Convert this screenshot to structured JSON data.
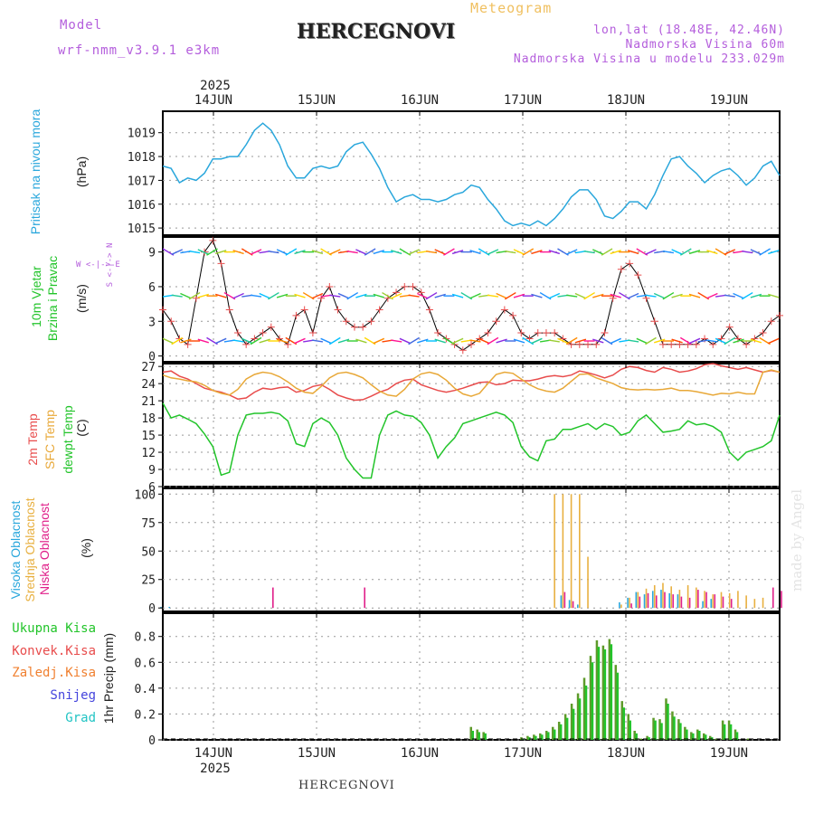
{
  "header": {
    "model_label": "Model",
    "model_name": "wrf-nmm_v3.9.1 e3km",
    "meteogram": "Meteogram",
    "station": "HERCEGNOVI",
    "coords": "lon,lat (18.48E, 42.46N)",
    "altitude": "Nadmorska Visina 60m",
    "model_altitude": "Nadmorska Visina u modelu 233.029m",
    "year_top": "2025",
    "year_bottom": "2025",
    "footer_station": "HERCEGNOVI",
    "credit": "made by Angel"
  },
  "panel_labels": {
    "pressure": [
      "Pritisak na nivou mora",
      "(hPa)"
    ],
    "wind": [
      "10m Vjetar",
      "Brzina i Pravac",
      "(m/s)"
    ],
    "wind_compass": "W <-|-> E",
    "wind_compass2": "S <-|-> N",
    "temp": [
      "2m Temp",
      "SFC Temp",
      "dewpt Temp",
      "(C)"
    ],
    "cloud": [
      "Visoka Oblacnost",
      "Srednja Oblacnost",
      "Niska Oblacnost",
      "(%)"
    ],
    "precip_legend": [
      "Ukupna Kisa",
      "Konvek.Kisa",
      "Zaledj.Kisa",
      "Snijeg",
      "Grad"
    ],
    "precip_axis": "1hr Precip (mm)"
  },
  "colors": {
    "pressure": "#2aa7dc",
    "t2m": "#e84c4c",
    "tsfc": "#e8a838",
    "dewpt": "#22c42a",
    "high_cloud": "#2aa7dc",
    "mid_cloud": "#e8b040",
    "low_cloud": "#e0208a",
    "rain": "#22c42a",
    "conv": "#e84c4c",
    "frz": "#f08030",
    "snow": "#4444dd",
    "hail": "#22c4c4",
    "pressure_label": "#2aa7dc",
    "wind_label": "#22c42a"
  },
  "chart_data": [
    {
      "type": "line",
      "name": "pressure",
      "x_ticks": [
        "14JUN",
        "15JUN",
        "16JUN",
        "17JUN",
        "18JUN",
        "19JUN"
      ],
      "ylabel": "(hPa)",
      "ylim": [
        1014.7,
        1019.9
      ],
      "yticks": [
        1015,
        1016,
        1017,
        1018,
        1019
      ],
      "series": [
        {
          "values": [
            1017.6,
            1017.5,
            1016.9,
            1017.1,
            1017.0,
            1017.3,
            1017.9,
            1017.9,
            1018.0,
            1018.0,
            1018.5,
            1019.1,
            1019.4,
            1019.1,
            1018.5,
            1017.6,
            1017.1,
            1017.1,
            1017.5,
            1017.6,
            1017.5,
            1017.6,
            1018.2,
            1018.5,
            1018.6,
            1018.1,
            1017.5,
            1016.7,
            1016.1,
            1016.3,
            1016.4,
            1016.2,
            1016.2,
            1016.1,
            1016.2,
            1016.4,
            1016.5,
            1016.8,
            1016.7,
            1016.2,
            1015.8,
            1015.3,
            1015.1,
            1015.2,
            1015.1,
            1015.3,
            1015.1,
            1015.4,
            1015.8,
            1016.3,
            1016.6,
            1016.6,
            1016.2,
            1015.5,
            1015.4,
            1015.7,
            1016.1,
            1016.1,
            1015.8,
            1016.4,
            1017.2,
            1017.9,
            1018.0,
            1017.6,
            1017.3,
            1016.9,
            1017.2,
            1017.4,
            1017.5,
            1017.2,
            1016.8,
            1017.1,
            1017.6,
            1017.8,
            1017.2
          ]
        }
      ]
    },
    {
      "type": "line",
      "name": "wind",
      "ylabel": "(m/s)",
      "ylim": [
        -0.5,
        10.3
      ],
      "yticks": [
        0,
        3,
        6,
        9
      ],
      "series": [
        {
          "name": "speed",
          "values": [
            4,
            3,
            1.5,
            1,
            5,
            9,
            10,
            8,
            4,
            2,
            1,
            1.5,
            2,
            2.5,
            1.5,
            1,
            3.5,
            4,
            2,
            5,
            6,
            4,
            3,
            2.5,
            2.5,
            3,
            4,
            5,
            5.5,
            6,
            6,
            5.5,
            4,
            2,
            1.5,
            1,
            0.5,
            1,
            1.5,
            2,
            3,
            4,
            3.5,
            2,
            1.5,
            2,
            2,
            2,
            1.5,
            1,
            1,
            1,
            1,
            2,
            5,
            7.5,
            8,
            7,
            5,
            3,
            1,
            1,
            1,
            1,
            1,
            1.5,
            1,
            1.5,
            2.5,
            1.5,
            1,
            1.5,
            2,
            3,
            3.5
          ]
        }
      ]
    },
    {
      "type": "line",
      "name": "temperature",
      "ylabel": "(C)",
      "ylim": [
        6,
        27.5
      ],
      "yticks": [
        6,
        9,
        12,
        15,
        18,
        21,
        24,
        27
      ],
      "series": [
        {
          "name": "2m Temp",
          "values": [
            26,
            26.2,
            25.3,
            24.8,
            24,
            23.2,
            22.8,
            22.5,
            22,
            21.3,
            21.5,
            22.5,
            23.2,
            23,
            23.3,
            23.4,
            22.5,
            22.8,
            23.5,
            23.8,
            23,
            22,
            21.5,
            21.1,
            21.2,
            21.8,
            22.5,
            23,
            24,
            24.6,
            24.8,
            23.8,
            23.3,
            22.8,
            22.5,
            22.8,
            23.2,
            23.7,
            24.2,
            24.3,
            23.8,
            24,
            24.6,
            24.5,
            24.5,
            24.8,
            25.2,
            25.4,
            25.2,
            25.5,
            26.2,
            25.9,
            25.5,
            25,
            25.5,
            26.5,
            27,
            26.8,
            26.3,
            26,
            26.8,
            26.5,
            26,
            26.2,
            26.6,
            27.3,
            27.5,
            27.1,
            26.8,
            26.5,
            26.8,
            26.4,
            26,
            26.3,
            26
          ]
        },
        {
          "name": "SFC Temp",
          "values": [
            25.5,
            25,
            24.8,
            24.5,
            24.3,
            23.7,
            22.8,
            22.3,
            22,
            23,
            24.8,
            25.6,
            26,
            25.8,
            25.2,
            24.3,
            23.2,
            22.5,
            22.3,
            23.5,
            25,
            25.8,
            26,
            25.6,
            25,
            23.8,
            22.7,
            22,
            21.8,
            23,
            24.8,
            25.7,
            26,
            25.6,
            24.6,
            23.2,
            22.2,
            21.8,
            22.3,
            24,
            25.6,
            26,
            25.8,
            24.8,
            23.8,
            23.1,
            22.7,
            22.5,
            23.2,
            24.4,
            25.6,
            25.7,
            25,
            24.5,
            24,
            23.3,
            23,
            22.9,
            23,
            22.9,
            23,
            23.2,
            22.8,
            22.8,
            22.6,
            22.3,
            22,
            22.3,
            22.2,
            22.5,
            22.2,
            22.2,
            26,
            26.4,
            26
          ]
        },
        {
          "name": "dewpt Temp",
          "values": [
            20.6,
            18,
            18.5,
            17.8,
            17,
            15.2,
            13,
            8,
            8.5,
            15,
            18.5,
            18.8,
            18.8,
            19,
            18.7,
            17.5,
            13.5,
            13,
            17,
            18,
            17.2,
            15,
            11,
            9,
            7.5,
            7.5,
            15,
            18.5,
            19.2,
            18.5,
            18.3,
            17.2,
            15,
            11,
            13,
            14.5,
            17,
            17.5,
            18,
            18.5,
            19,
            18.5,
            17.2,
            13,
            11.2,
            10.5,
            14,
            14.3,
            16,
            16,
            16.5,
            17,
            16,
            17,
            16.5,
            15,
            15.5,
            17.5,
            18.5,
            17,
            15.5,
            15.7,
            16,
            17.5,
            16.8,
            17,
            16.5,
            15.5,
            12,
            10.6,
            12,
            12.5,
            13,
            14,
            18.5
          ]
        }
      ]
    },
    {
      "type": "bar",
      "name": "cloud",
      "ylabel": "(%)",
      "ylim": [
        -3,
        105
      ],
      "yticks": [
        0,
        25,
        50,
        75,
        100
      ],
      "series": [
        {
          "name": "Visoka Oblacnost",
          "values": [
            1,
            1,
            0,
            0,
            0,
            0,
            0,
            0,
            0,
            0,
            0,
            0,
            0,
            0,
            0,
            0,
            0,
            0,
            0,
            0,
            0,
            0,
            0,
            0,
            0,
            0,
            0,
            0,
            0,
            0,
            0,
            0,
            0,
            0,
            0,
            0,
            0,
            0,
            0,
            0,
            0,
            0,
            0,
            0,
            0,
            0,
            0,
            0,
            11,
            7,
            3,
            0,
            0,
            0,
            0,
            5,
            9,
            14,
            12,
            15,
            16,
            13,
            12,
            0,
            0,
            6,
            8,
            0,
            0,
            0,
            0,
            0,
            0,
            0,
            0
          ]
        },
        {
          "name": "Srednja Oblacnost",
          "values": [
            0,
            0,
            0,
            0,
            0,
            0,
            0,
            0,
            0,
            0,
            0,
            0,
            0,
            0,
            0,
            0,
            0,
            0,
            0,
            0,
            0,
            0,
            0,
            0,
            0,
            0,
            0,
            0,
            0,
            0,
            0,
            0,
            0,
            0,
            0,
            0,
            0,
            0,
            0,
            0,
            0,
            0,
            0,
            0,
            0,
            0,
            0,
            100,
            100,
            100,
            100,
            45,
            0,
            0,
            0,
            3,
            9,
            14,
            17,
            20,
            22,
            19,
            16,
            20,
            18,
            15,
            12,
            14,
            13,
            15,
            11,
            8,
            9,
            0,
            0
          ]
        },
        {
          "name": "Niska Oblacnost",
          "values": [
            0,
            0,
            0,
            0,
            0,
            0,
            0,
            0,
            0,
            0,
            0,
            0,
            0,
            18,
            0,
            0,
            0,
            0,
            0,
            0,
            0,
            0,
            0,
            0,
            18,
            0,
            0,
            0,
            0,
            0,
            0,
            0,
            0,
            0,
            0,
            0,
            0,
            0,
            0,
            0,
            0,
            0,
            0,
            0,
            0,
            0,
            0,
            0,
            14,
            6,
            0,
            0,
            0,
            0,
            0,
            0,
            4,
            10,
            13,
            11,
            14,
            12,
            10,
            9,
            16,
            14,
            12,
            10,
            8,
            0,
            0,
            0,
            0,
            18,
            15
          ]
        }
      ]
    },
    {
      "type": "bar",
      "name": "precip",
      "ylabel": "1hr Precip (mm)",
      "ylim": [
        0,
        0.98
      ],
      "yticks": [
        0,
        0.2,
        0.4,
        0.6,
        0.8
      ],
      "series": [
        {
          "name": "Ukupna Kisa",
          "values": [
            0,
            0,
            0,
            0,
            0,
            0,
            0,
            0,
            0,
            0,
            0,
            0,
            0,
            0,
            0,
            0,
            0,
            0,
            0,
            0,
            0,
            0,
            0,
            0,
            0,
            0,
            0,
            0,
            0,
            0,
            0,
            0,
            0,
            0,
            0,
            0,
            0,
            0,
            0,
            0,
            0,
            0,
            0,
            0,
            0,
            0,
            0,
            0,
            0,
            0.1,
            0.08,
            0.06,
            0,
            0,
            0,
            0,
            0,
            0.02,
            0.03,
            0.04,
            0.05,
            0.07,
            0.1,
            0.14,
            0.2,
            0.28,
            0.36,
            0.48,
            0.65,
            0.77,
            0.73,
            0.78,
            0.58,
            0.3,
            0.2,
            0.07,
            0.01,
            0.03,
            0.17,
            0.16,
            0.32,
            0.22,
            0.16,
            0.1,
            0.06,
            0.08,
            0.05,
            0.03,
            0.01,
            0.15,
            0.15,
            0.08,
            0,
            0.01,
            0,
            0,
            0,
            0,
            0
          ]
        },
        {
          "name": "Konvek.Kisa",
          "values": [
            0,
            0,
            0,
            0,
            0,
            0,
            0,
            0,
            0,
            0,
            0,
            0,
            0,
            0,
            0,
            0,
            0,
            0,
            0,
            0,
            0,
            0,
            0,
            0,
            0,
            0,
            0,
            0,
            0,
            0,
            0,
            0,
            0,
            0,
            0,
            0,
            0,
            0,
            0,
            0,
            0,
            0,
            0,
            0,
            0,
            0,
            0,
            0,
            0,
            0.07,
            0.06,
            0.05,
            0,
            0,
            0,
            0,
            0,
            0.01,
            0.02,
            0.03,
            0.04,
            0.06,
            0.08,
            0.12,
            0.17,
            0.24,
            0.32,
            0.42,
            0.6,
            0.72,
            0.7,
            0.74,
            0.52,
            0.25,
            0.15,
            0.05,
            0,
            0.02,
            0.15,
            0.13,
            0.28,
            0.18,
            0.13,
            0.08,
            0.05,
            0.07,
            0.04,
            0.02,
            0,
            0.12,
            0.12,
            0.06,
            0,
            0,
            0,
            0,
            0,
            0,
            0
          ]
        }
      ]
    }
  ]
}
